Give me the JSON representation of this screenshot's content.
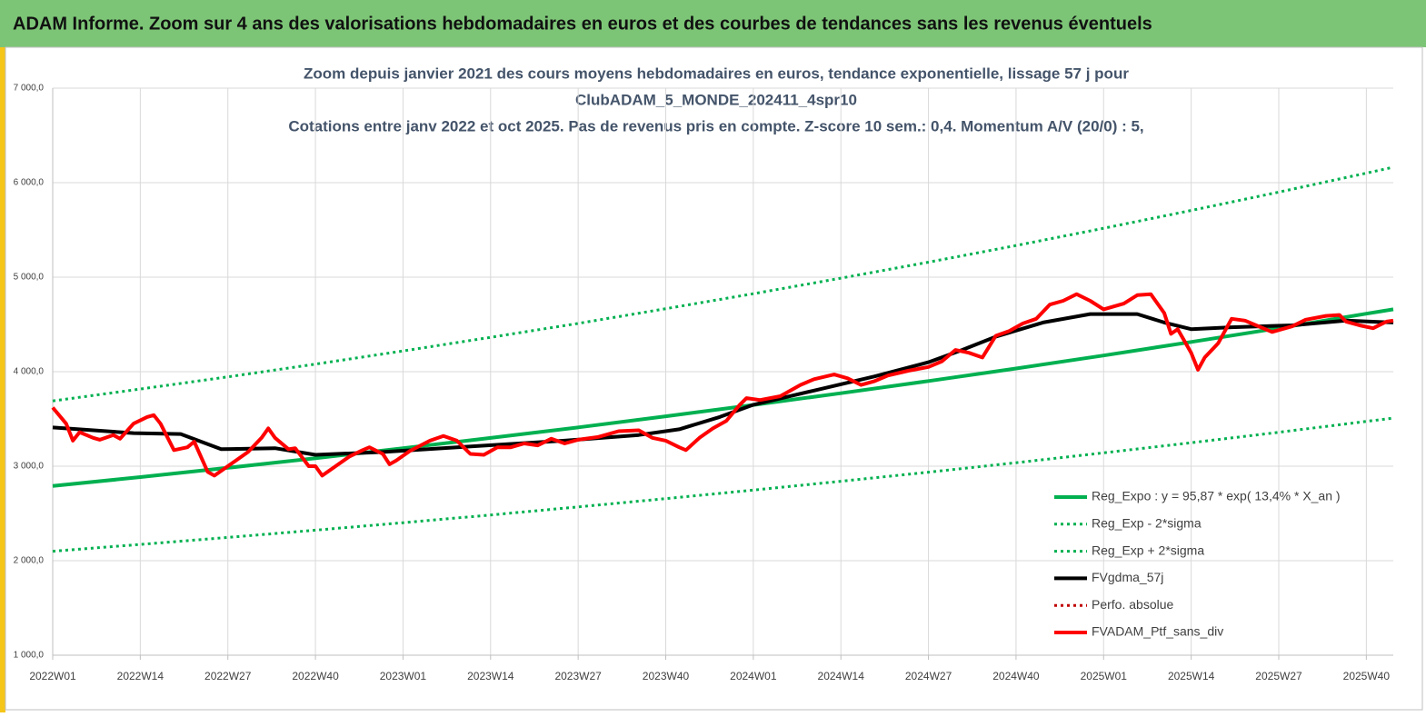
{
  "header": {
    "title": "ADAM Informe. Zoom sur 4 ans des valorisations hebdomadaires en euros et des courbes de tendances sans les revenus éventuels"
  },
  "chart_data": {
    "type": "line",
    "title_lines": [
      "Zoom depuis janvier 2021 des cours moyens hebdomadaires  en euros, tendance exponentielle, lissage 57 j pour",
      "ClubADAM_5_MONDE_202411_4spr10",
      "Cotations  entre janv 2022 et oct 2025. Pas de revenus pris en compte. Z-score 10 sem.: 0,4. Momentum A/V (20/0) : 5,"
    ],
    "xlim": [
      0,
      199
    ],
    "xticks": [
      {
        "value": 0,
        "label": "2022W01"
      },
      {
        "value": 13,
        "label": "2022W14"
      },
      {
        "value": 26,
        "label": "2022W27"
      },
      {
        "value": 39,
        "label": "2022W40"
      },
      {
        "value": 52,
        "label": "2023W01"
      },
      {
        "value": 65,
        "label": "2023W14"
      },
      {
        "value": 78,
        "label": "2023W27"
      },
      {
        "value": 91,
        "label": "2023W40"
      },
      {
        "value": 104,
        "label": "2024W01"
      },
      {
        "value": 117,
        "label": "2024W14"
      },
      {
        "value": 130,
        "label": "2024W27"
      },
      {
        "value": 143,
        "label": "2024W40"
      },
      {
        "value": 156,
        "label": "2025W01"
      },
      {
        "value": 169,
        "label": "2025W14"
      },
      {
        "value": 182,
        "label": "2025W27"
      },
      {
        "value": 195,
        "label": "2025W40"
      }
    ],
    "ylim": [
      1000,
      7000
    ],
    "yticks": [
      {
        "value": 1000,
        "label": "1 000,0"
      },
      {
        "value": 2000,
        "label": "2 000,0"
      },
      {
        "value": 3000,
        "label": "3 000,0"
      },
      {
        "value": 4000,
        "label": "4 000,0"
      },
      {
        "value": 5000,
        "label": "5 000,0"
      },
      {
        "value": 6000,
        "label": "6 000,0"
      },
      {
        "value": 7000,
        "label": "7 000,0"
      }
    ],
    "grid": true,
    "legend": "lower right",
    "series": [
      {
        "name": "Reg_Expo : y = 95,87 * exp( 13,4% *  X_an )",
        "color": "#00b050",
        "style": "solid",
        "x": [
          0,
          13,
          26,
          39,
          52,
          65,
          78,
          91,
          104,
          117,
          130,
          143,
          156,
          169,
          182,
          195,
          199
        ],
        "values": [
          2790,
          2885,
          2983,
          3085,
          3190,
          3299,
          3411,
          3528,
          3648,
          3772,
          3901,
          4034,
          4171,
          4314,
          4461,
          4613,
          4660
        ]
      },
      {
        "name": "Reg_Exp - 2*sigma",
        "color": "#00b050",
        "style": "dotted",
        "x": [
          0,
          13,
          26,
          39,
          52,
          65,
          78,
          91,
          104,
          117,
          130,
          143,
          156,
          169,
          182,
          195,
          199
        ],
        "values": [
          2100,
          2172,
          2246,
          2323,
          2402,
          2484,
          2569,
          2657,
          2747,
          2840,
          2937,
          3037,
          3141,
          3248,
          3359,
          3474,
          3509
        ]
      },
      {
        "name": "Reg_Exp + 2*sigma",
        "color": "#00b050",
        "style": "dotted",
        "x": [
          0,
          13,
          26,
          39,
          52,
          65,
          78,
          91,
          104,
          117,
          130,
          143,
          156,
          169,
          182,
          195,
          199
        ],
        "values": [
          3690,
          3816,
          3945,
          4080,
          4219,
          4363,
          4511,
          4666,
          4825,
          4989,
          5159,
          5335,
          5517,
          5706,
          5900,
          6101,
          6163
        ]
      },
      {
        "name": "FVgdma_57j",
        "color": "#000000",
        "style": "solid",
        "x": [
          0,
          12,
          19,
          25,
          33,
          39,
          49,
          60,
          76,
          87,
          93,
          99,
          104,
          113,
          122,
          130,
          135,
          140,
          147,
          154,
          161,
          165,
          169,
          175,
          184,
          192,
          199
        ],
        "values": [
          3410,
          3350,
          3340,
          3180,
          3190,
          3120,
          3150,
          3200,
          3270,
          3330,
          3390,
          3520,
          3650,
          3800,
          3950,
          4100,
          4230,
          4370,
          4520,
          4610,
          4610,
          4520,
          4450,
          4470,
          4490,
          4540,
          4520
        ]
      },
      {
        "name": "Perfo. absolue",
        "color": "#c00000",
        "style": "dotted",
        "x": [],
        "values": []
      },
      {
        "name": "FVADAM_Ptf_sans_div",
        "color": "#ff0000",
        "style": "solid",
        "x": [
          0,
          2,
          3,
          4,
          6,
          7,
          9,
          10,
          12,
          14,
          15,
          16,
          18,
          20,
          21,
          23,
          24,
          26,
          29,
          31,
          32,
          33,
          35,
          36,
          38,
          39,
          40,
          42,
          44,
          46,
          47,
          49,
          50,
          51,
          53,
          56,
          58,
          60,
          62,
          64,
          66,
          68,
          70,
          72,
          74,
          76,
          78,
          81,
          84,
          87,
          89,
          91,
          93,
          94,
          96,
          98,
          100,
          102,
          103,
          105,
          108,
          111,
          113,
          116,
          118,
          120,
          122,
          124,
          127,
          130,
          132,
          134,
          136,
          138,
          140,
          142,
          144,
          146,
          148,
          150,
          152,
          154,
          156,
          158,
          159,
          161,
          163,
          165,
          166,
          167,
          169,
          170,
          171,
          173,
          175,
          177,
          179,
          181,
          184,
          186,
          189,
          191,
          192,
          194,
          196,
          198,
          199
        ],
        "values": [
          3620,
          3450,
          3270,
          3360,
          3300,
          3280,
          3330,
          3290,
          3450,
          3520,
          3540,
          3450,
          3170,
          3200,
          3260,
          2940,
          2900,
          3000,
          3150,
          3300,
          3400,
          3300,
          3180,
          3190,
          3000,
          3000,
          2900,
          3000,
          3100,
          3170,
          3200,
          3130,
          3020,
          3060,
          3160,
          3270,
          3320,
          3270,
          3130,
          3120,
          3200,
          3200,
          3240,
          3220,
          3290,
          3240,
          3280,
          3310,
          3370,
          3380,
          3300,
          3270,
          3200,
          3170,
          3300,
          3400,
          3480,
          3650,
          3720,
          3700,
          3740,
          3860,
          3920,
          3970,
          3930,
          3860,
          3900,
          3960,
          4010,
          4050,
          4110,
          4230,
          4200,
          4150,
          4380,
          4430,
          4510,
          4560,
          4710,
          4750,
          4820,
          4750,
          4660,
          4700,
          4720,
          4810,
          4820,
          4620,
          4400,
          4450,
          4200,
          4020,
          4150,
          4300,
          4560,
          4540,
          4480,
          4420,
          4480,
          4550,
          4590,
          4600,
          4530,
          4490,
          4460,
          4530,
          4540
        ]
      }
    ]
  }
}
